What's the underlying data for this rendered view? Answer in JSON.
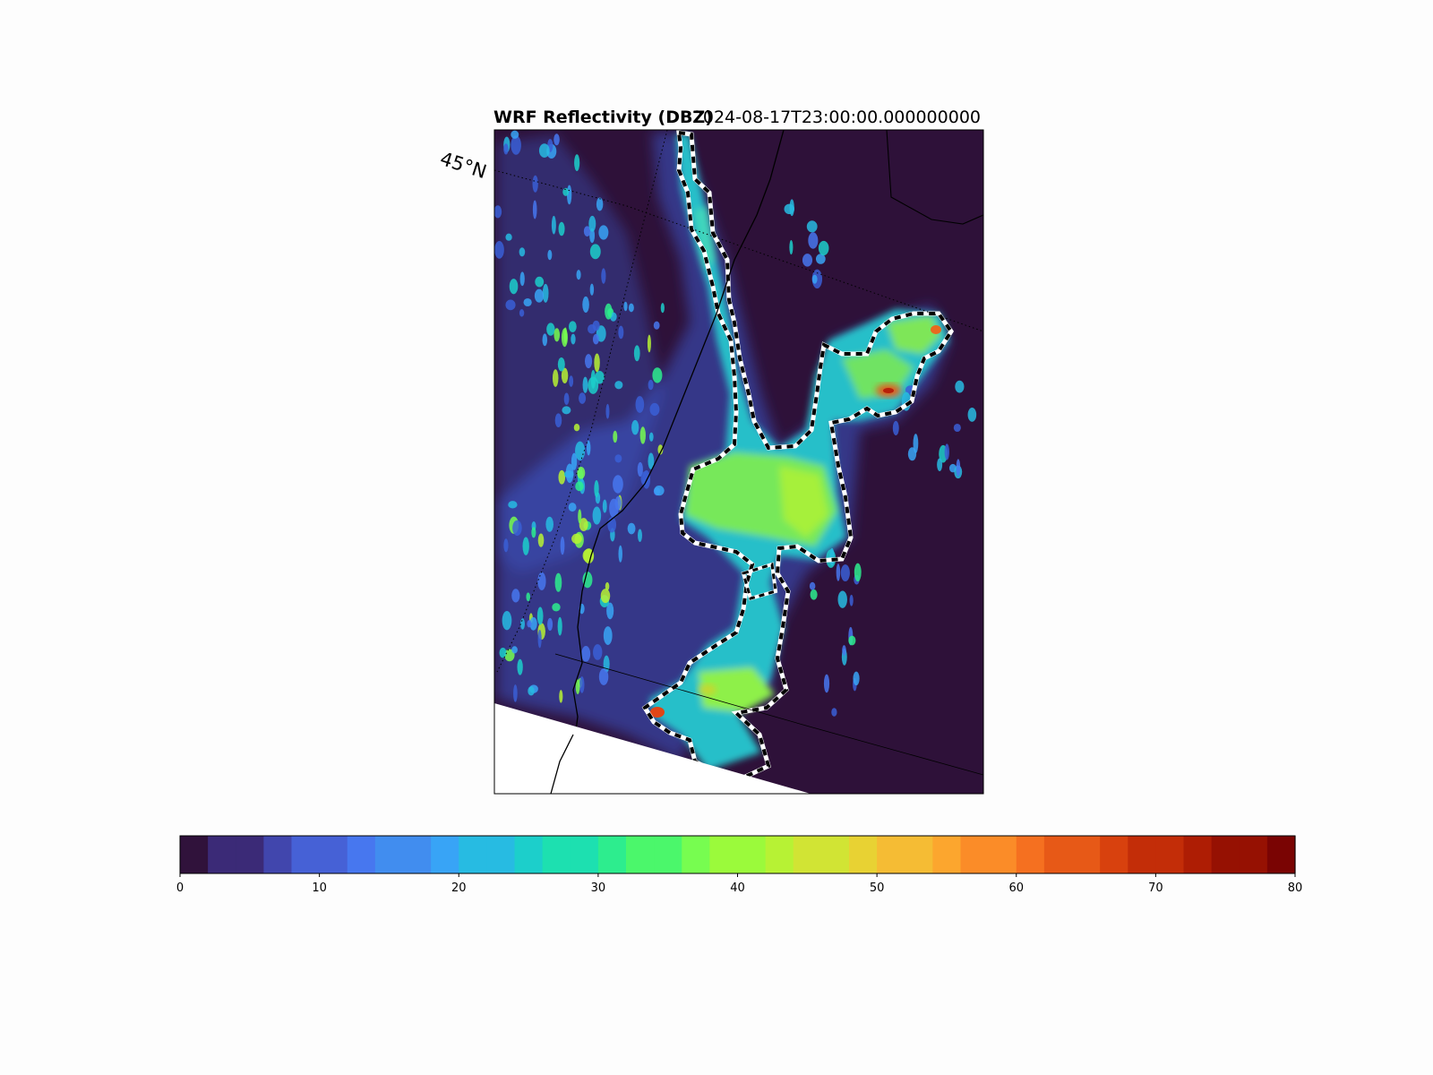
{
  "title_left": "WRF Reflectivity (DBZ)",
  "title_right": "2024-08-17T23:00:00.000000000",
  "map": {
    "lat_label": "45°N",
    "background_color": "#2e1139",
    "land_outside_color": "#ffffff"
  },
  "colorbar": {
    "min": 0,
    "max": 80,
    "ticks": [
      "0",
      "10",
      "20",
      "30",
      "40",
      "50",
      "60",
      "70",
      "80"
    ],
    "levels": 40,
    "colormap": "turbo",
    "colors": [
      "#30123b",
      "#3b2a77",
      "#4146ad",
      "#4661d6",
      "#4777ef",
      "#418def",
      "#38a4f6",
      "#27bbe2",
      "#1ccfcb",
      "#1de0b0",
      "#2ded8e",
      "#4bf76b",
      "#77fd50",
      "#9bfa3b",
      "#b7f234",
      "#d1e434",
      "#e8d233",
      "#f5bc34",
      "#fca62e",
      "#fb8c28",
      "#f57020",
      "#e75917",
      "#d8410e",
      "#c32d08",
      "#ae1d04",
      "#961102",
      "#7a0403"
    ]
  },
  "contour_level_dbz": 20
}
